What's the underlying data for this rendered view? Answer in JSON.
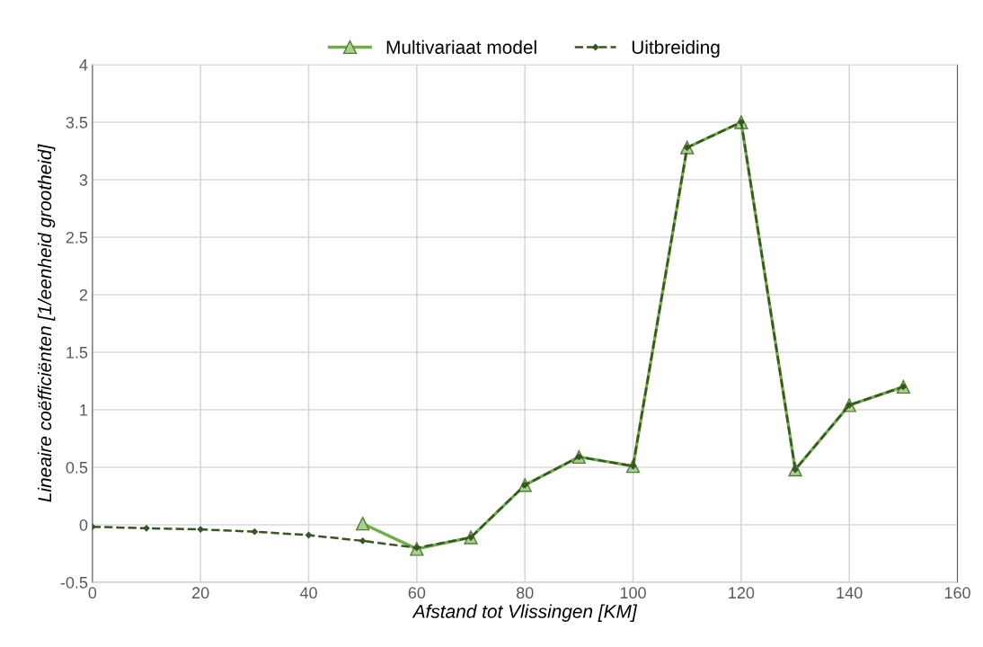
{
  "chart_data": {
    "type": "line",
    "xlabel": "Afstand tot Vlissingen [KM]",
    "ylabel": "Lineaire coëfficiënten [1/eenheid grootheid]",
    "xlim": [
      0,
      160
    ],
    "xticks": [
      0,
      20,
      40,
      60,
      80,
      100,
      120,
      140,
      160
    ],
    "ylim": [
      -0.5,
      4
    ],
    "yticks": [
      -0.5,
      0,
      0.5,
      1,
      1.5,
      2,
      2.5,
      3,
      3.5,
      4
    ],
    "grid": true,
    "legend": "top",
    "series": [
      {
        "name": "Multivariaat model",
        "color": "#70ad47",
        "marker": "triangle",
        "line_style": "solid",
        "x": [
          50,
          60,
          70,
          80,
          90,
          100,
          110,
          120,
          130,
          140,
          150
        ],
        "values": [
          0.01,
          -0.21,
          -0.11,
          0.345,
          0.59,
          0.51,
          3.28,
          3.5,
          0.48,
          1.04,
          1.2
        ]
      },
      {
        "name": "Uitbreiding",
        "color": "#375623",
        "marker": "diamond",
        "line_style": "dashed",
        "x": [
          0,
          10,
          20,
          30,
          40,
          50,
          60,
          70,
          80,
          90,
          100,
          110,
          120,
          130,
          140,
          150
        ],
        "values": [
          -0.017,
          -0.03,
          -0.04,
          -0.06,
          -0.09,
          -0.14,
          -0.2,
          -0.11,
          0.345,
          0.59,
          0.51,
          3.28,
          3.5,
          0.48,
          1.04,
          1.2
        ]
      }
    ]
  }
}
